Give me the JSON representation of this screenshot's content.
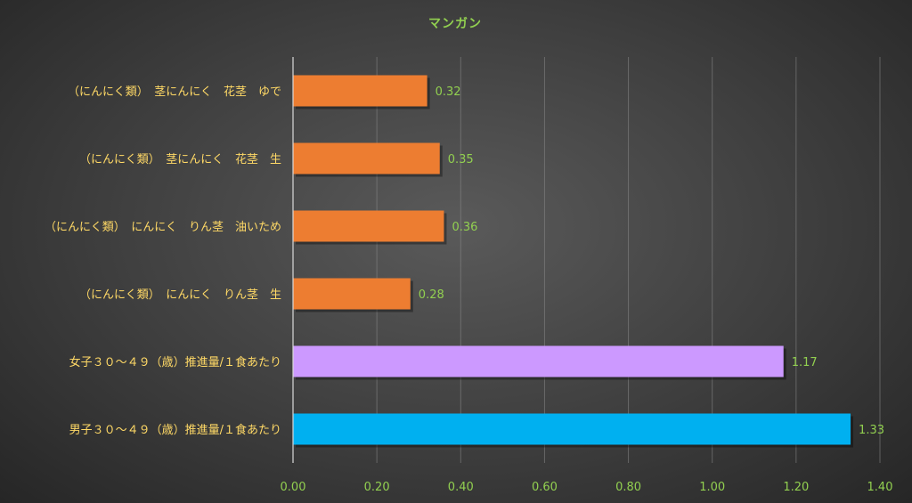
{
  "chart_data": {
    "type": "bar",
    "orientation": "horizontal",
    "title": "マンガン",
    "categories": [
      "（にんにく類）　茎にんにく　花茎　ゆで",
      "（にんにく類）　茎にんにく　花茎　生",
      "（にんにく類）　にんにく　りん茎　油いため",
      "（にんにく類）　にんにく　りん茎　生",
      "女子３０～４９（歳）推進量/１食あたり",
      "男子３０～４９（歳）推進量/１食あたり"
    ],
    "values": [
      0.32,
      0.35,
      0.36,
      0.28,
      1.17,
      1.33
    ],
    "value_labels": [
      "0.32",
      "0.35",
      "0.36",
      "0.28",
      "1.17",
      "1.33"
    ],
    "bar_colors": [
      "#ed7d31",
      "#ed7d31",
      "#ed7d31",
      "#ed7d31",
      "#cc99ff",
      "#00b0f0"
    ],
    "xlim": [
      0,
      1.4
    ],
    "x_ticks": [
      "0.00",
      "0.20",
      "0.40",
      "0.60",
      "0.80",
      "1.00",
      "1.20",
      "1.40"
    ],
    "xlabel": "",
    "ylabel": "",
    "grid": true,
    "legend": "none",
    "colors": {
      "title": "#92d050",
      "category_label": "#ffd966",
      "value_label": "#92d050",
      "tick_label": "#92d050"
    }
  }
}
